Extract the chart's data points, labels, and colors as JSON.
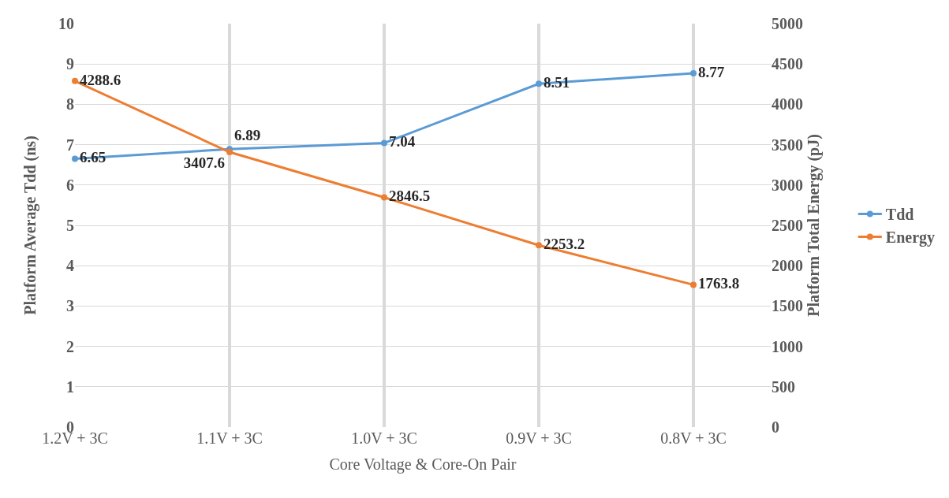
{
  "chart_data": {
    "type": "line",
    "xlabel": "Core Voltage & Core-On Pair",
    "ylabel": "Platform Average Tdd (ns)",
    "y2label": "Platform Total Energy (pJ)",
    "categories": [
      "1.2V + 3C",
      "1.1V + 3C",
      "1.0V + 3C",
      "0.9V + 3C",
      "0.8V + 3C"
    ],
    "series": [
      {
        "name": "Tdd",
        "color": "#5b9bd5",
        "values": [
          6.65,
          6.89,
          7.04,
          8.51,
          8.77
        ]
      },
      {
        "name": "Energy",
        "color": "#ed7d31",
        "values": [
          4288.6,
          3407.6,
          2846.5,
          2253.2,
          1763.8
        ],
        "axis": "y2"
      }
    ],
    "ylim": [
      0,
      10
    ],
    "yticks": [
      0,
      1,
      2,
      3,
      4,
      5,
      6,
      7,
      8,
      9,
      10
    ],
    "y2lim": [
      0,
      5000
    ],
    "y2ticks": [
      0,
      500,
      1000,
      1500,
      2000,
      2500,
      3000,
      3500,
      4000,
      4500,
      5000
    ],
    "data_labels": true,
    "grid": true,
    "legend": "right",
    "marker": "circle",
    "line_style": "solid"
  }
}
